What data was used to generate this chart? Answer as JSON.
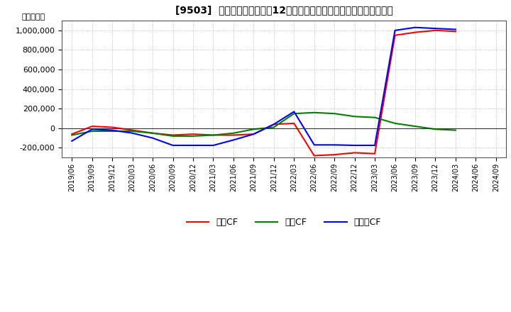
{
  "title": "[9503]  キャッシュフローの12か月移動合計の対前年同期増減額の推移",
  "ylabel": "（百万円）",
  "background_color": "#ffffff",
  "plot_bg_color": "#ffffff",
  "grid_color": "#aaaacc",
  "x_labels": [
    "2019/06",
    "2019/09",
    "2019/12",
    "2020/03",
    "2020/06",
    "2020/09",
    "2020/12",
    "2021/03",
    "2021/06",
    "2021/09",
    "2021/12",
    "2022/03",
    "2022/06",
    "2022/09",
    "2022/12",
    "2023/03",
    "2023/06",
    "2023/09",
    "2023/12",
    "2024/03",
    "2024/06",
    "2024/09"
  ],
  "operating_cf": [
    -60000,
    20000,
    10000,
    -20000,
    -50000,
    -70000,
    -60000,
    -70000,
    -70000,
    -60000,
    40000,
    50000,
    -280000,
    -270000,
    -250000,
    -260000,
    950000,
    980000,
    1000000,
    990000,
    null,
    null
  ],
  "investing_cf": [
    -70000,
    -30000,
    -30000,
    -30000,
    -50000,
    -80000,
    -80000,
    -70000,
    -50000,
    -10000,
    10000,
    150000,
    160000,
    150000,
    120000,
    110000,
    50000,
    20000,
    -10000,
    -20000,
    null,
    null
  ],
  "free_cf": [
    -130000,
    -10000,
    -20000,
    -50000,
    -100000,
    -175000,
    -175000,
    -175000,
    -120000,
    -60000,
    40000,
    170000,
    -170000,
    -170000,
    -175000,
    -175000,
    1000000,
    1030000,
    1020000,
    1010000,
    null,
    null
  ],
  "operating_color": "#ff0000",
  "investing_color": "#008000",
  "free_color": "#0000ff",
  "legend_labels": [
    "営業CF",
    "投資CF",
    "フリーCF"
  ],
  "ylim": [
    -300000,
    1100000
  ],
  "yticks": [
    -200000,
    0,
    200000,
    400000,
    600000,
    800000,
    1000000
  ]
}
